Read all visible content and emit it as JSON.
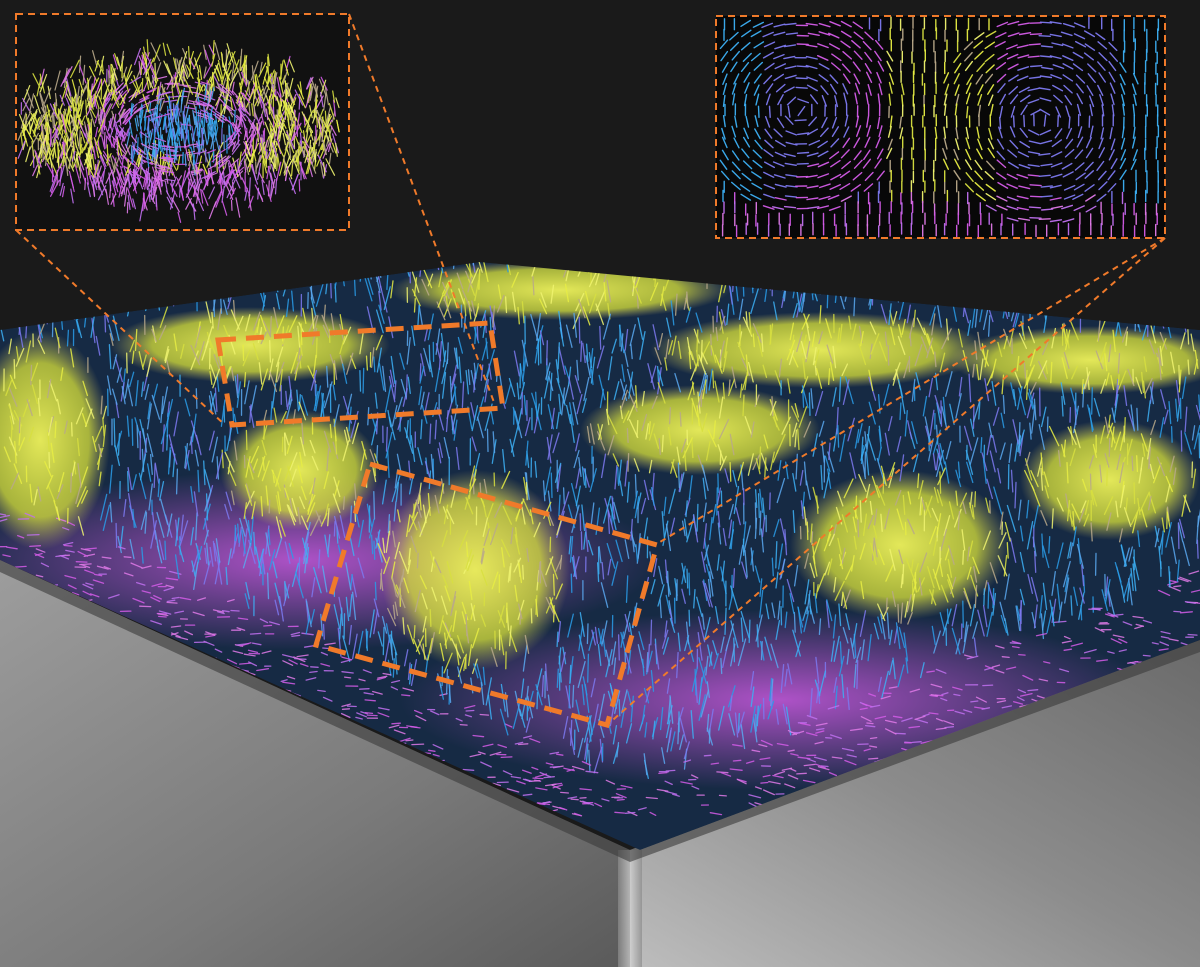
{
  "figure": {
    "colors": {
      "background": "#1a1a1a",
      "substrate_light": "#b8b8b8",
      "substrate_dark": "#5a5a5a",
      "callout_outline": "#f07a2a",
      "spin_up": "#e8ee44",
      "spin_in_plane": "#3db0f5",
      "spin_down": "#d45ce8",
      "spin_mid": "#7d79f0",
      "spin_tan": "#b9a98a"
    },
    "layers": [
      {
        "name": "substrate-slab"
      },
      {
        "name": "spin-texture-film"
      },
      {
        "name": "skyrmion-inset"
      },
      {
        "name": "cross-section-inset"
      },
      {
        "name": "zoom-callouts"
      }
    ]
  }
}
